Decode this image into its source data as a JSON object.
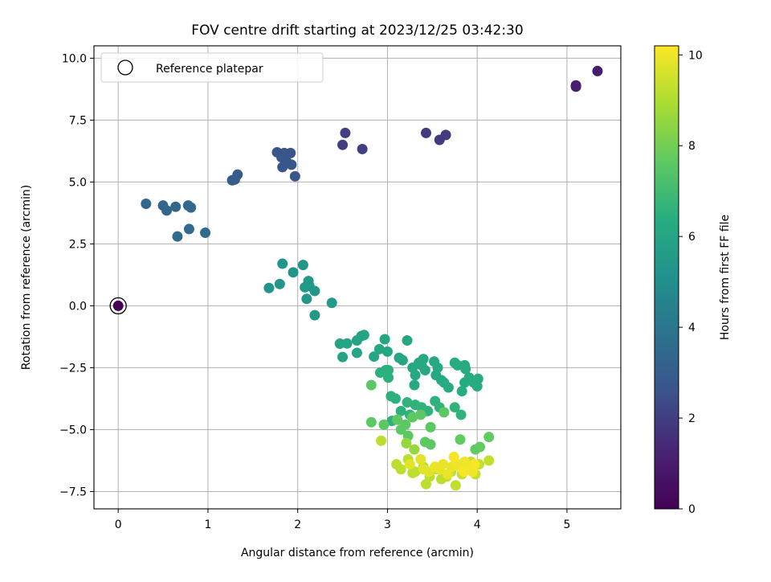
{
  "chart_data": {
    "type": "scatter",
    "title": "FOV centre drift starting at 2023/12/25 03:42:30",
    "xlabel": "Angular distance from reference (arcmin)",
    "ylabel": "Rotation from reference (arcmin)",
    "xlim": [
      -0.27,
      5.6
    ],
    "ylim": [
      -8.2,
      10.5
    ],
    "xticks": [
      0,
      1,
      2,
      3,
      4,
      5
    ],
    "yticks": [
      -7.5,
      -5.0,
      -2.5,
      0.0,
      2.5,
      5.0,
      7.5,
      10.0
    ],
    "xtick_labels": [
      "0",
      "1",
      "2",
      "3",
      "4",
      "5"
    ],
    "ytick_labels": [
      "−7.5",
      "−5.0",
      "−2.5",
      "0.0",
      "2.5",
      "5.0",
      "7.5",
      "10.0"
    ],
    "grid": true,
    "legend_position": "upper-left",
    "legend_label": "Reference platepar",
    "reference_point": {
      "x": 0,
      "y": 0
    },
    "colorbar": {
      "label": "Hours from first FF file",
      "colormap": "viridis",
      "range": [
        0,
        10.2
      ],
      "ticks": [
        0,
        2,
        4,
        6,
        8,
        10
      ],
      "tick_labels": [
        "0",
        "2",
        "4",
        "6",
        "8",
        "10"
      ]
    },
    "points": [
      [
        0,
        0,
        0.05
      ],
      [
        5.1,
        8.9,
        1.1
      ],
      [
        5.1,
        8.85,
        1.1
      ],
      [
        5.34,
        9.48,
        1.0
      ],
      [
        2.53,
        6.98,
        2.0
      ],
      [
        2.5,
        6.5,
        2.0
      ],
      [
        2.72,
        6.33,
        2.0
      ],
      [
        3.43,
        6.98,
        1.9
      ],
      [
        3.58,
        6.7,
        1.9
      ],
      [
        3.65,
        6.9,
        1.9
      ],
      [
        1.77,
        6.2,
        2.7
      ],
      [
        1.82,
        6.0,
        2.7
      ],
      [
        1.85,
        6.17,
        2.7
      ],
      [
        1.92,
        6.17,
        2.7
      ],
      [
        1.88,
        5.8,
        2.7
      ],
      [
        1.83,
        5.6,
        2.7
      ],
      [
        1.93,
        5.7,
        2.7
      ],
      [
        1.97,
        5.23,
        2.8
      ],
      [
        1.27,
        5.07,
        2.9
      ],
      [
        1.3,
        5.1,
        2.9
      ],
      [
        1.33,
        5.3,
        2.9
      ],
      [
        0.31,
        4.12,
        3.4
      ],
      [
        0.5,
        4.05,
        3.4
      ],
      [
        0.54,
        3.85,
        3.4
      ],
      [
        0.64,
        4.0,
        3.4
      ],
      [
        0.78,
        4.05,
        3.4
      ],
      [
        0.81,
        3.97,
        3.4
      ],
      [
        0.66,
        2.8,
        3.5
      ],
      [
        0.79,
        3.1,
        3.5
      ],
      [
        0.97,
        2.95,
        3.5
      ],
      [
        1.68,
        0.72,
        5.3
      ],
      [
        1.8,
        0.88,
        5.3
      ],
      [
        1.83,
        1.7,
        5.3
      ],
      [
        1.95,
        1.35,
        5.3
      ],
      [
        2.06,
        1.65,
        5.3
      ],
      [
        2.08,
        0.75,
        5.4
      ],
      [
        2.12,
        1.0,
        5.4
      ],
      [
        2.13,
        0.8,
        5.4
      ],
      [
        2.1,
        0.28,
        5.4
      ],
      [
        2.19,
        0.6,
        5.4
      ],
      [
        2.19,
        -0.38,
        5.5
      ],
      [
        2.38,
        0.12,
        5.5
      ],
      [
        2.47,
        -1.53,
        5.9
      ],
      [
        2.5,
        -2.07,
        5.9
      ],
      [
        2.55,
        -1.52,
        5.9
      ],
      [
        2.66,
        -1.4,
        5.9
      ],
      [
        2.66,
        -1.9,
        5.9
      ],
      [
        2.71,
        -1.22,
        5.9
      ],
      [
        2.74,
        -1.18,
        5.9
      ],
      [
        2.85,
        -2.05,
        6.1
      ],
      [
        2.91,
        -1.75,
        6.1
      ],
      [
        2.97,
        -1.35,
        6.1
      ],
      [
        3.0,
        -1.85,
        6.1
      ],
      [
        3.13,
        -2.1,
        6.1
      ],
      [
        3.17,
        -2.2,
        6.1
      ],
      [
        3.22,
        -1.4,
        6.1
      ],
      [
        3.28,
        -2.5,
        6.2
      ],
      [
        3.31,
        -2.8,
        6.2
      ],
      [
        3.35,
        -2.3,
        6.2
      ],
      [
        3.38,
        -2.4,
        6.2
      ],
      [
        3.4,
        -2.15,
        6.2
      ],
      [
        3.42,
        -2.6,
        6.2
      ],
      [
        3.3,
        -3.2,
        6.2
      ],
      [
        3.52,
        -2.25,
        6.2
      ],
      [
        3.56,
        -2.5,
        6.2
      ],
      [
        3.54,
        -2.8,
        6.2
      ],
      [
        3.6,
        -3.0,
        6.2
      ],
      [
        3.63,
        -3.1,
        6.3
      ],
      [
        3.68,
        -3.3,
        6.3
      ],
      [
        3.75,
        -2.3,
        6.3
      ],
      [
        3.78,
        -2.4,
        6.3
      ],
      [
        3.86,
        -2.4,
        6.3
      ],
      [
        3.87,
        -2.55,
        6.3
      ],
      [
        3.91,
        -2.9,
        6.3
      ],
      [
        3.86,
        -3.1,
        6.3
      ],
      [
        3.83,
        -3.45,
        6.3
      ],
      [
        3.96,
        -3.1,
        6.3
      ],
      [
        4.0,
        -3.25,
        6.3
      ],
      [
        4.01,
        -2.95,
        6.3
      ],
      [
        2.92,
        -2.7,
        6.5
      ],
      [
        2.98,
        -2.6,
        6.5
      ],
      [
        3.01,
        -2.9,
        6.5
      ],
      [
        3.01,
        -2.6,
        6.5
      ],
      [
        3.04,
        -3.65,
        6.5
      ],
      [
        3.09,
        -3.75,
        6.5
      ],
      [
        3.05,
        -4.65,
        6.5
      ],
      [
        3.15,
        -4.25,
        6.5
      ],
      [
        3.22,
        -3.9,
        6.6
      ],
      [
        3.25,
        -4.4,
        6.6
      ],
      [
        3.31,
        -4.0,
        6.6
      ],
      [
        3.38,
        -4.1,
        6.6
      ],
      [
        3.45,
        -4.25,
        6.6
      ],
      [
        3.38,
        -4.35,
        6.6
      ],
      [
        3.53,
        -3.85,
        6.6
      ],
      [
        3.58,
        -4.1,
        6.6
      ],
      [
        3.75,
        -4.1,
        6.6
      ],
      [
        3.82,
        -4.4,
        6.6
      ],
      [
        2.82,
        -3.2,
        7.6
      ],
      [
        2.82,
        -4.7,
        7.6
      ],
      [
        2.96,
        -4.8,
        7.6
      ],
      [
        3.11,
        -4.6,
        7.6
      ],
      [
        3.15,
        -5.0,
        7.6
      ],
      [
        3.2,
        -4.8,
        7.6
      ],
      [
        3.23,
        -5.25,
        7.6
      ],
      [
        3.28,
        -4.5,
        7.6
      ],
      [
        3.37,
        -4.4,
        7.6
      ],
      [
        3.42,
        -5.5,
        7.6
      ],
      [
        3.48,
        -5.6,
        7.6
      ],
      [
        3.48,
        -4.9,
        7.6
      ],
      [
        3.63,
        -4.3,
        7.6
      ],
      [
        3.81,
        -5.4,
        7.7
      ],
      [
        3.98,
        -5.8,
        7.7
      ],
      [
        4.03,
        -5.7,
        7.7
      ],
      [
        4.13,
        -5.3,
        7.7
      ],
      [
        3.21,
        -5.55,
        8.6
      ],
      [
        3.3,
        -5.8,
        8.6
      ],
      [
        2.93,
        -5.45,
        9.2
      ],
      [
        3.1,
        -6.4,
        9.2
      ],
      [
        3.15,
        -6.6,
        9.2
      ],
      [
        3.23,
        -6.2,
        9.2
      ],
      [
        3.28,
        -6.75,
        9.2
      ],
      [
        3.31,
        -6.7,
        9.2
      ],
      [
        3.4,
        -6.5,
        9.2
      ],
      [
        3.43,
        -7.2,
        9.2
      ],
      [
        3.47,
        -6.9,
        9.2
      ],
      [
        3.55,
        -6.6,
        9.2
      ],
      [
        3.6,
        -7.0,
        9.2
      ],
      [
        3.66,
        -6.9,
        9.2
      ],
      [
        3.71,
        -6.7,
        9.2
      ],
      [
        3.76,
        -7.25,
        9.3
      ],
      [
        3.83,
        -6.8,
        9.3
      ],
      [
        3.88,
        -6.6,
        9.3
      ],
      [
        3.93,
        -6.3,
        9.3
      ],
      [
        3.98,
        -6.8,
        9.3
      ],
      [
        4.02,
        -6.4,
        9.3
      ],
      [
        4.13,
        -6.25,
        9.3
      ],
      [
        3.25,
        -6.4,
        9.8
      ],
      [
        3.37,
        -6.2,
        9.8
      ],
      [
        3.4,
        -6.6,
        9.8
      ],
      [
        3.46,
        -6.7,
        9.8
      ],
      [
        3.53,
        -6.5,
        9.9
      ],
      [
        3.58,
        -6.6,
        9.9
      ],
      [
        3.62,
        -6.4,
        9.9
      ],
      [
        3.67,
        -6.8,
        9.9
      ],
      [
        3.72,
        -6.5,
        9.9
      ],
      [
        3.78,
        -6.4,
        10.0
      ],
      [
        3.82,
        -6.55,
        10.0
      ],
      [
        3.86,
        -6.3,
        10.0
      ],
      [
        3.92,
        -6.5,
        10.0
      ],
      [
        3.95,
        -6.7,
        10.0
      ],
      [
        3.97,
        -6.4,
        10.1
      ],
      [
        3.85,
        -6.7,
        10.1
      ],
      [
        3.74,
        -6.1,
        10.1
      ]
    ]
  }
}
